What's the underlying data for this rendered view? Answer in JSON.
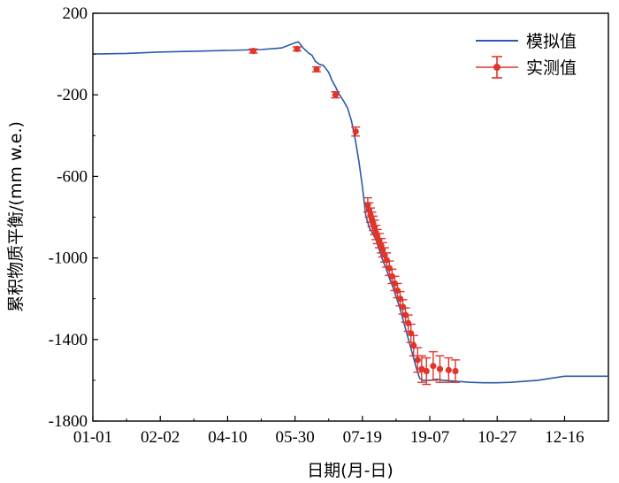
{
  "chart_data": {
    "type": "line",
    "xlabel": "日期(月-日)",
    "ylabel": "累积物质平衡/(mm w.e.)",
    "x_ticks": [
      "01-01",
      "02-02",
      "04-10",
      "05-30",
      "07-19",
      "19-07",
      "10-27",
      "12-16"
    ],
    "y_ticks": [
      "200",
      "-200",
      "-600",
      "-1000",
      "-1400",
      "-1800"
    ],
    "xlim": [
      0,
      7.65
    ],
    "ylim": [
      -1800,
      200
    ],
    "grid": false,
    "legend_position": "top-right",
    "series": [
      {
        "name": "模拟值",
        "kind": "line",
        "color": "#2a5aa8",
        "x": [
          0,
          0.5,
          1.0,
          1.5,
          2.0,
          2.5,
          2.8,
          3.0,
          3.05,
          3.12,
          3.2,
          3.25,
          3.3,
          3.36,
          3.42,
          3.5,
          3.55,
          3.6,
          3.65,
          3.72,
          3.78,
          3.84,
          3.9,
          3.95,
          4.0,
          4.05,
          4.1,
          4.15,
          4.2,
          4.25,
          4.3,
          4.35,
          4.4,
          4.45,
          4.5,
          4.55,
          4.6,
          4.65,
          4.7,
          4.75,
          4.8,
          4.85,
          4.9,
          4.95,
          5.0,
          5.1,
          5.2,
          5.3,
          5.4,
          5.6,
          5.8,
          6.0,
          6.2,
          6.4,
          6.6,
          6.8,
          7.0,
          7.3,
          7.65
        ],
        "y": [
          0,
          3,
          10,
          14,
          18,
          22,
          30,
          55,
          60,
          30,
          5,
          -5,
          -35,
          -50,
          -55,
          -90,
          -130,
          -160,
          -195,
          -230,
          -265,
          -330,
          -430,
          -530,
          -650,
          -790,
          -850,
          -880,
          -910,
          -960,
          -1010,
          -1050,
          -1100,
          -1140,
          -1190,
          -1240,
          -1300,
          -1360,
          -1420,
          -1480,
          -1540,
          -1590,
          -1600,
          -1600,
          -1600,
          -1595,
          -1600,
          -1602,
          -1605,
          -1610,
          -1612,
          -1612,
          -1610,
          -1605,
          -1600,
          -1590,
          -1580,
          -1580,
          -1580
        ]
      },
      {
        "name": "实测值",
        "kind": "errorbar",
        "color": "#e0352b",
        "x": [
          2.38,
          3.03,
          3.32,
          3.6,
          3.9,
          4.08,
          4.1,
          4.12,
          4.14,
          4.16,
          4.18,
          4.2,
          4.22,
          4.25,
          4.28,
          4.3,
          4.33,
          4.36,
          4.4,
          4.44,
          4.48,
          4.52,
          4.56,
          4.6,
          4.64,
          4.68,
          4.72,
          4.76,
          4.82,
          4.88,
          4.95,
          5.05,
          5.15,
          5.28,
          5.38
        ],
        "y": [
          15,
          25,
          -75,
          -200,
          -380,
          -740,
          -765,
          -790,
          -810,
          -830,
          -850,
          -875,
          -895,
          -915,
          -940,
          -960,
          -985,
          -1010,
          -1050,
          -1090,
          -1125,
          -1160,
          -1200,
          -1240,
          -1280,
          -1320,
          -1370,
          -1430,
          -1500,
          -1545,
          -1555,
          -1530,
          -1545,
          -1550,
          -1555
        ],
        "err": [
          10,
          10,
          12,
          15,
          22,
          35,
          35,
          35,
          35,
          35,
          35,
          35,
          35,
          35,
          35,
          35,
          35,
          35,
          35,
          35,
          35,
          35,
          35,
          35,
          35,
          40,
          45,
          50,
          60,
          65,
          65,
          70,
          65,
          60,
          55
        ]
      }
    ]
  }
}
